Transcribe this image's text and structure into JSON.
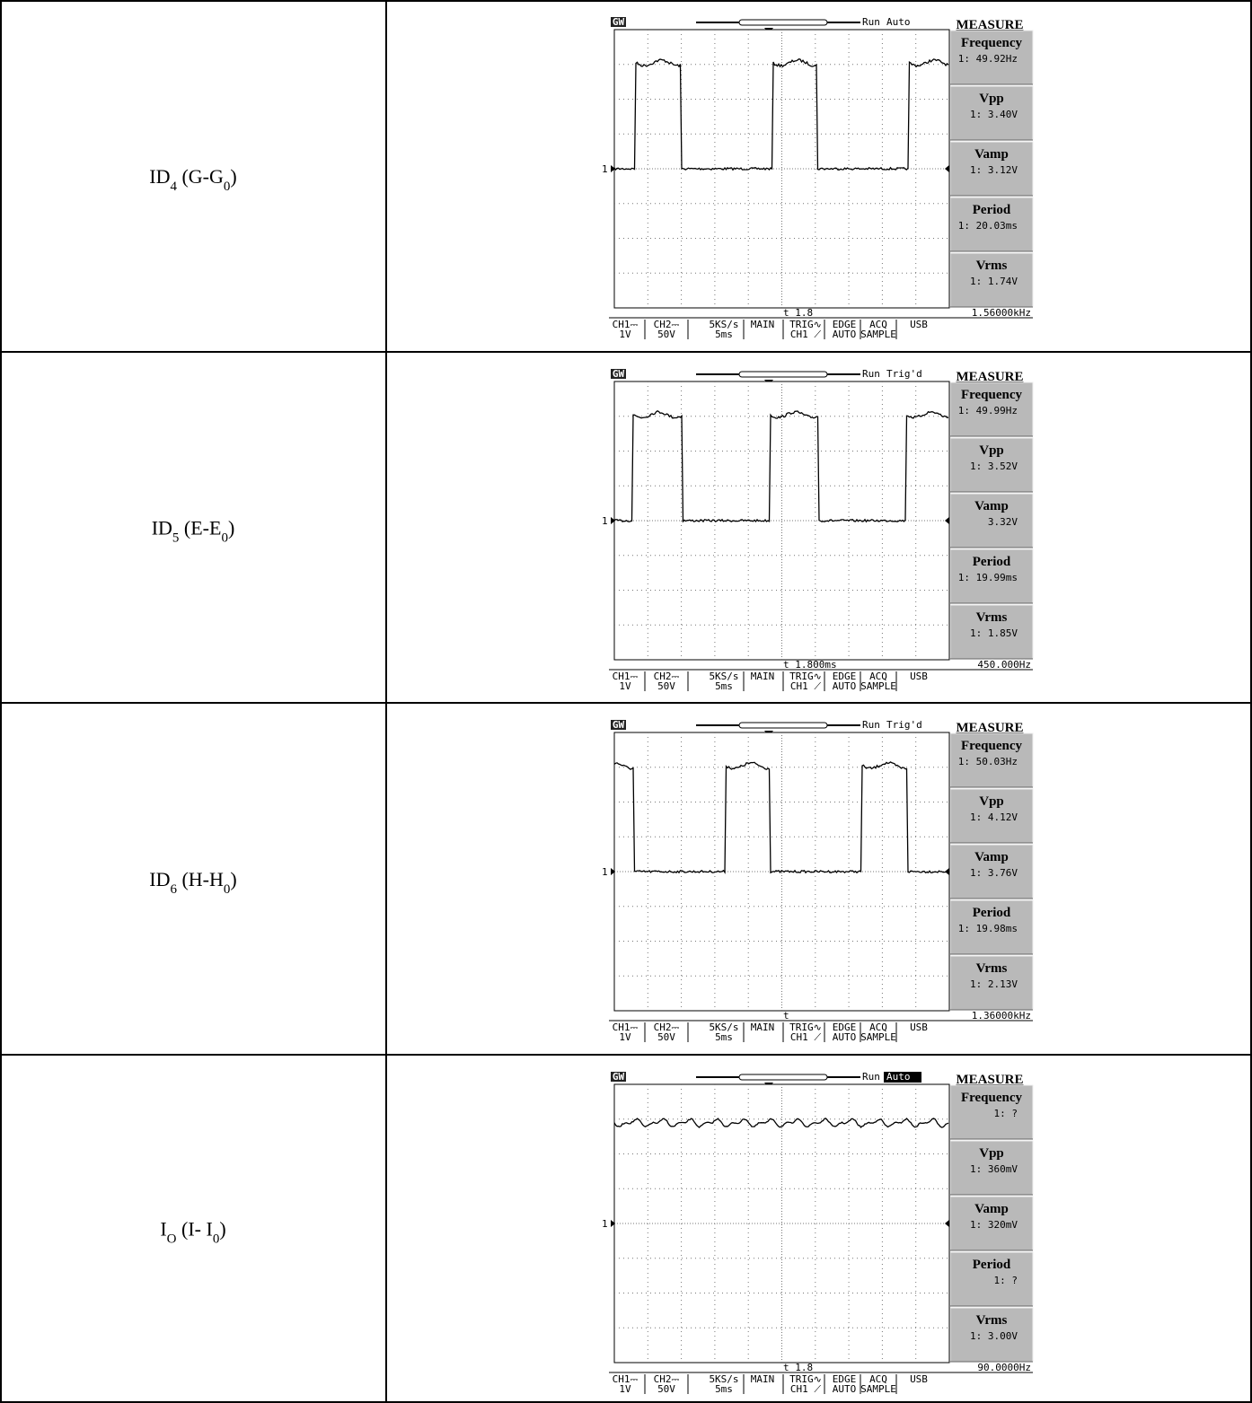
{
  "scope": {
    "logo": "GW",
    "header": "MEASURE",
    "marker": "1",
    "footer": [
      {
        "top": "CH1⎓",
        "bottom": "1V"
      },
      {
        "top": "CH2⎓",
        "bottom": "50V"
      },
      {
        "top": "5KS/s",
        "bottom": "5ms"
      },
      {
        "top": "MAIN"
      },
      {
        "top": "TRIG∿",
        "bottom": "CH1 ⟋"
      },
      {
        "top": "EDGE",
        "bottom": "AUTO"
      },
      {
        "top": "ACQ",
        "bottom": "SAMPLE"
      },
      {
        "top": "USB"
      }
    ]
  },
  "rows": [
    {
      "label": [
        {
          "text": "ID"
        },
        {
          "text": "4",
          "sub": true
        },
        {
          "text": " (G-G"
        },
        {
          "text": "0",
          "sub": true
        },
        {
          "text": ")"
        }
      ],
      "run": "Run",
      "mode": "Auto",
      "measurements": [
        {
          "name": "Frequency",
          "value": "1: 49.92Hz"
        },
        {
          "name": "Vpp",
          "value": "1: 3.40V"
        },
        {
          "name": "Vamp",
          "value": "1: 3.12V"
        },
        {
          "name": "Period",
          "value": "1: 20.03ms"
        },
        {
          "name": "Vrms",
          "value": "1: 1.74V"
        }
      ],
      "cursor": "t 1.8",
      "readout": "1.56000kHz"
    },
    {
      "label": [
        {
          "text": "ID"
        },
        {
          "text": "5",
          "sub": true
        },
        {
          "text": " (E-E"
        },
        {
          "text": "0",
          "sub": true
        },
        {
          "text": ")"
        }
      ],
      "run": "Run",
      "mode": "Trig'd",
      "measurements": [
        {
          "name": "Frequency",
          "value": "1: 49.99Hz"
        },
        {
          "name": "Vpp",
          "value": "1: 3.52V"
        },
        {
          "name": "Vamp",
          "value": "3.32V"
        },
        {
          "name": "Period",
          "value": "1: 19.99ms"
        },
        {
          "name": "Vrms",
          "value": "1: 1.85V"
        }
      ],
      "cursor": "t 1.800ms",
      "readout": "450.000Hz"
    },
    {
      "label": [
        {
          "text": "ID"
        },
        {
          "text": "6",
          "sub": true
        },
        {
          "text": " (H-H"
        },
        {
          "text": "0",
          "sub": true
        },
        {
          "text": ")"
        }
      ],
      "run": "Run",
      "mode": "Trig'd",
      "measurements": [
        {
          "name": "Frequency",
          "value": "1: 50.03Hz"
        },
        {
          "name": "Vpp",
          "value": "1: 4.12V"
        },
        {
          "name": "Vamp",
          "value": "1: 3.76V"
        },
        {
          "name": "Period",
          "value": "1: 19.98ms"
        },
        {
          "name": "Vrms",
          "value": "1: 2.13V"
        }
      ],
      "cursor": "t",
      "readout": "1.36000kHz"
    },
    {
      "label": [
        {
          "text": "I"
        },
        {
          "text": "O",
          "sub": true
        },
        {
          "text": " (I- I"
        },
        {
          "text": "0",
          "sub": true
        },
        {
          "text": ")"
        }
      ],
      "run": "Run",
      "mode": "Auto",
      "mode_highlight": true,
      "measurements": [
        {
          "name": "Frequency",
          "value": "1: ?"
        },
        {
          "name": "Vpp",
          "value": "1: 360mV"
        },
        {
          "name": "Vamp",
          "value": "1: 320mV"
        },
        {
          "name": "Period",
          "value": "1: ?"
        },
        {
          "name": "Vrms",
          "value": "1: 3.00V"
        }
      ],
      "cursor": "t 1.8",
      "readout": "90.0000Hz"
    }
  ]
}
